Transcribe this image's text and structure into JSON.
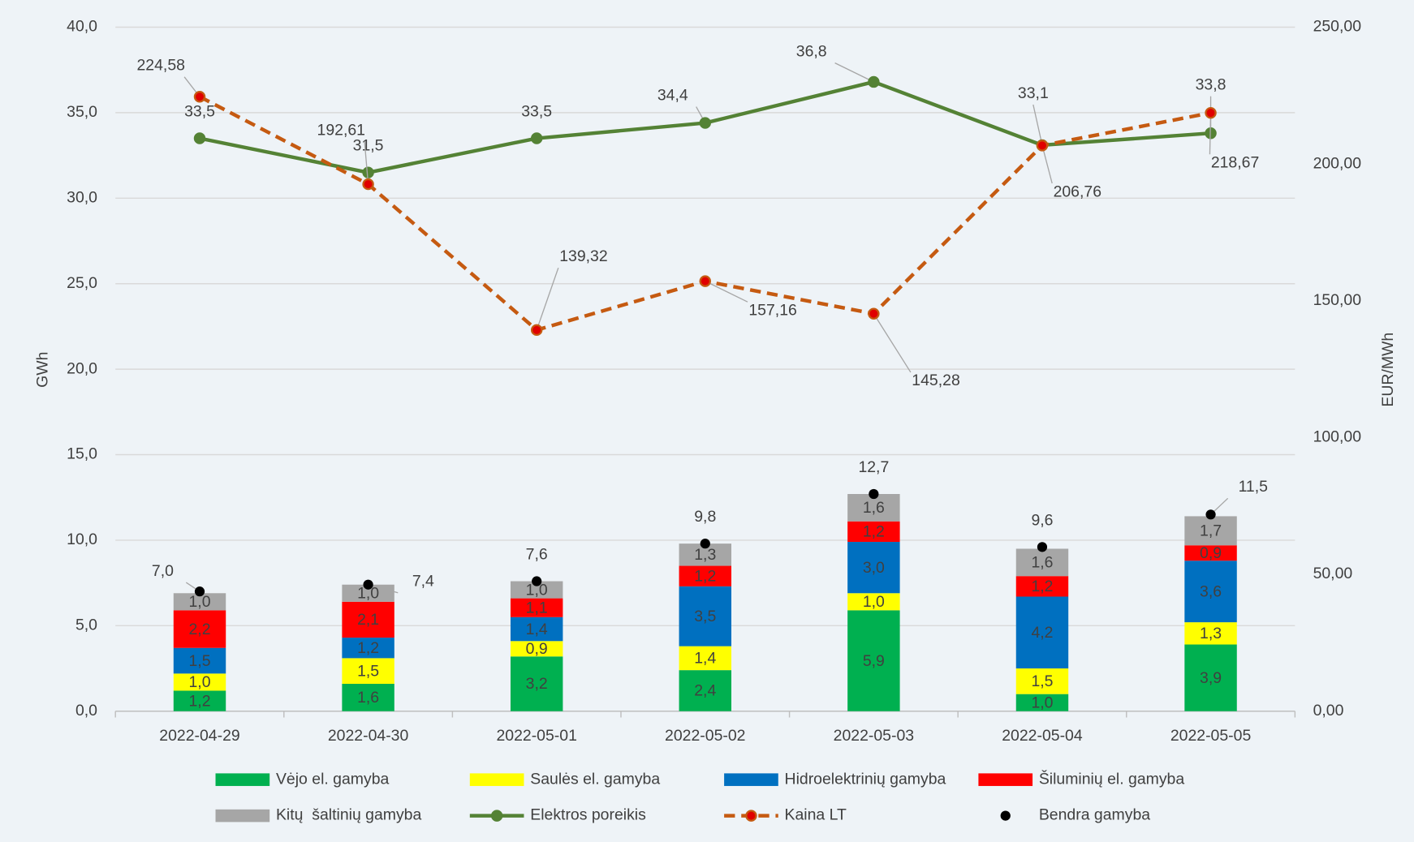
{
  "chart_data": {
    "type": "bar",
    "stacked": true,
    "categories": [
      "2022-04-29",
      "2022-04-30",
      "2022-05-01",
      "2022-05-02",
      "2022-05-03",
      "2022-05-04",
      "2022-05-05"
    ],
    "ylabel": "GWh",
    "y2label": "EUR/MWh",
    "ylim": [
      0,
      40
    ],
    "yticks": [
      {
        "value": 0,
        "label": "0,0"
      },
      {
        "value": 5,
        "label": "5,0"
      },
      {
        "value": 10,
        "label": "10,0"
      },
      {
        "value": 15,
        "label": "15,0"
      },
      {
        "value": 20,
        "label": "20,0"
      },
      {
        "value": 25,
        "label": "25,0"
      },
      {
        "value": 30,
        "label": "30,0"
      },
      {
        "value": 35,
        "label": "35,0"
      },
      {
        "value": 40,
        "label": "40,0"
      }
    ],
    "y2lim": [
      0,
      250
    ],
    "y2ticks": [
      {
        "value": 0,
        "label": "0,00"
      },
      {
        "value": 50,
        "label": "50,00"
      },
      {
        "value": 100,
        "label": "100,00"
      },
      {
        "value": 150,
        "label": "150,00"
      },
      {
        "value": 200,
        "label": "200,00"
      },
      {
        "value": 250,
        "label": "250,00"
      }
    ],
    "grid": true,
    "series": [
      {
        "name": "Vėjo el. gamyba",
        "type": "bar",
        "color": "#00b050",
        "values": [
          1.2,
          1.6,
          3.2,
          2.4,
          5.9,
          1.0,
          3.9
        ],
        "value_labels": [
          "1,2",
          "1,6",
          "3,2",
          "2,4",
          "5,9",
          "1,0",
          "3,9"
        ]
      },
      {
        "name": "Saulės el. gamyba",
        "type": "bar",
        "color": "#ffff00",
        "values": [
          1.0,
          1.5,
          0.9,
          1.4,
          1.0,
          1.5,
          1.3
        ],
        "value_labels": [
          "1,0",
          "1,5",
          "0,9",
          "1,4",
          "1,0",
          "1,5",
          "1,3"
        ]
      },
      {
        "name": "Hidroelektrinių gamyba",
        "type": "bar",
        "color": "#0070c0",
        "values": [
          1.5,
          1.2,
          1.4,
          3.5,
          3.0,
          4.2,
          3.6
        ],
        "value_labels": [
          "1,5",
          "1,2",
          "1,4",
          "3,5",
          "3,0",
          "4,2",
          "3,6"
        ]
      },
      {
        "name": "Šiluminių el. gamyba",
        "type": "bar",
        "color": "#ff0000",
        "values": [
          2.2,
          2.1,
          1.1,
          1.2,
          1.2,
          1.2,
          0.9
        ],
        "value_labels": [
          "2,2",
          "2,1",
          "1,1",
          "1,2",
          "1,2",
          "1,2",
          "0,9"
        ]
      },
      {
        "name": "Kitų  šaltinių gamyba",
        "type": "bar",
        "color": "#a6a6a6",
        "values": [
          1.0,
          1.0,
          1.0,
          1.3,
          1.6,
          1.6,
          1.7
        ],
        "value_labels": [
          "1,0",
          "1,0",
          "1,0",
          "1,3",
          "1,6",
          "1,6",
          "1,7"
        ]
      },
      {
        "name": "Elektros poreikis",
        "type": "line",
        "color": "#548235",
        "values": [
          33.5,
          31.5,
          33.5,
          34.4,
          36.8,
          33.1,
          33.8
        ],
        "value_labels": [
          "33,5",
          "31,5",
          "33,5",
          "34,4",
          "36,8",
          "33,1",
          "33,8"
        ]
      },
      {
        "name": "Kaina LT",
        "type": "line",
        "axis": "y2",
        "dashed": true,
        "color": "#c55a11",
        "marker_color": "#e00000",
        "values": [
          224.58,
          192.61,
          139.32,
          157.16,
          145.28,
          206.76,
          218.67
        ],
        "value_labels": [
          "224,58",
          "192,61",
          "139,32",
          "157,16",
          "145,28",
          "206,76",
          "218,67"
        ]
      },
      {
        "name": "Bendra gamyba",
        "type": "scatter",
        "color": "#000000",
        "values": [
          7.0,
          7.4,
          7.6,
          9.8,
          12.7,
          9.6,
          11.5
        ],
        "value_labels": [
          "7,0",
          "7,4",
          "7,6",
          "9,8",
          "12,7",
          "9,6",
          "11,5"
        ]
      }
    ]
  }
}
